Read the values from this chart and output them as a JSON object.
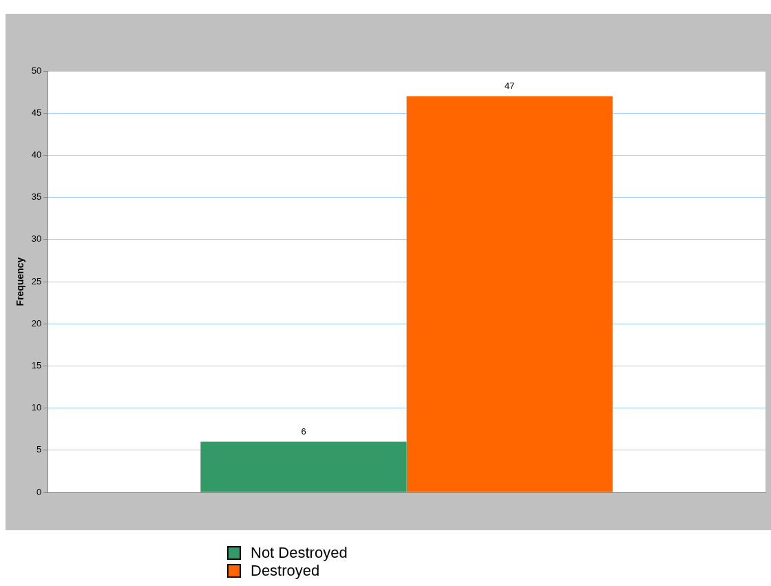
{
  "chart_data": {
    "type": "bar",
    "ylabel": "Frequency",
    "categories": [
      null
    ],
    "series": [
      {
        "name": "Not Destroyed",
        "color": "#339966",
        "values": [
          6
        ]
      },
      {
        "name": "Destroyed",
        "color": "#ff6600",
        "values": [
          47
        ]
      }
    ],
    "ylim": [
      0,
      50
    ],
    "yticks": [
      0,
      5,
      10,
      15,
      20,
      25,
      30,
      35,
      40,
      45,
      50
    ],
    "grid": "y",
    "legend": "bottom",
    "data_labels": true
  }
}
